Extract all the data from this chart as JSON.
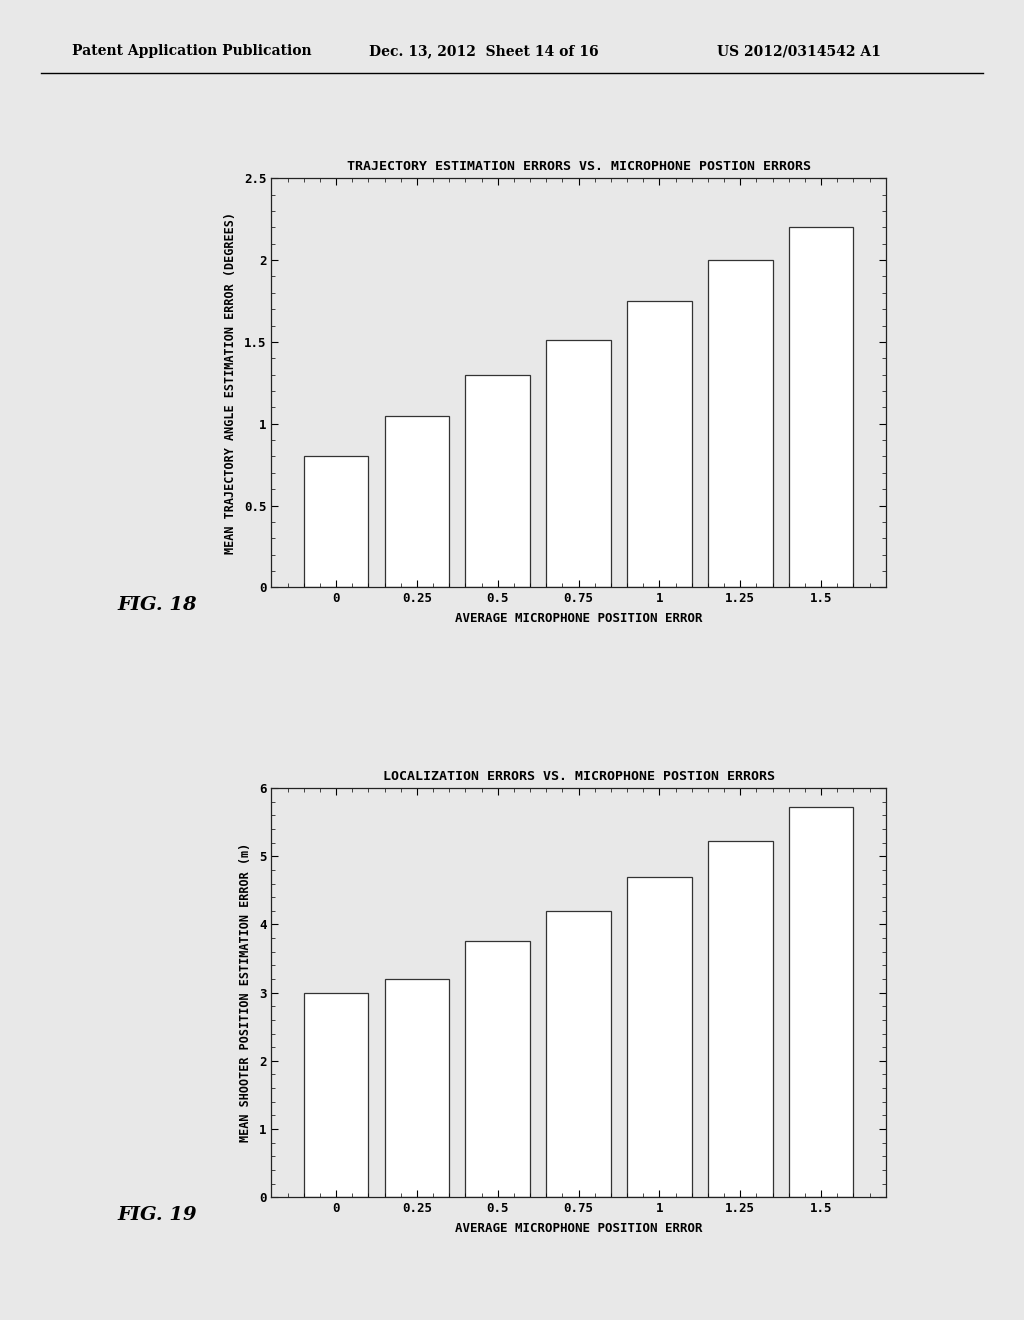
{
  "chart1": {
    "title": "TRAJECTORY ESTIMATION ERRORS VS. MICROPHONE POSTION ERRORS",
    "xlabel": "AVERAGE MICROPHONE POSITION ERROR",
    "ylabel": "MEAN TRAJECTORY ANGLE ESTIMATION ERROR (DEGREES)",
    "x_positions": [
      0,
      0.25,
      0.5,
      0.75,
      1.0,
      1.25,
      1.5
    ],
    "bar_heights": [
      0.8,
      1.05,
      1.3,
      1.51,
      1.75,
      2.0,
      2.2
    ],
    "bar_width": 0.2,
    "ylim": [
      0,
      2.5
    ],
    "yticks": [
      0,
      0.5,
      1.0,
      1.5,
      2.0,
      2.5
    ],
    "ytick_labels": [
      "0",
      "0.5",
      "1",
      "1.5",
      "2",
      "2.5"
    ],
    "xticks": [
      0,
      0.25,
      0.5,
      0.75,
      1.0,
      1.25,
      1.5
    ],
    "xtick_labels": [
      "0",
      "0.25",
      "0.5",
      "0.75",
      "1",
      "1.25",
      "1.5"
    ],
    "fig_label": "FIG. 18"
  },
  "chart2": {
    "title": "LOCALIZATION ERRORS VS. MICROPHONE POSTION ERRORS",
    "xlabel": "AVERAGE MICROPHONE POSITION ERROR",
    "ylabel": "MEAN SHOOTER POSITION ESTIMATION ERROR (m)",
    "x_positions": [
      0,
      0.25,
      0.5,
      0.75,
      1.0,
      1.25,
      1.5
    ],
    "bar_heights": [
      3.0,
      3.2,
      3.75,
      4.2,
      4.7,
      5.22,
      5.72
    ],
    "bar_width": 0.2,
    "ylim": [
      0,
      6
    ],
    "yticks": [
      0,
      1,
      2,
      3,
      4,
      5,
      6
    ],
    "ytick_labels": [
      "0",
      "1",
      "2",
      "3",
      "4",
      "5",
      "6"
    ],
    "xticks": [
      0,
      0.25,
      0.5,
      0.75,
      1.0,
      1.25,
      1.5
    ],
    "xtick_labels": [
      "0",
      "0.25",
      "0.5",
      "0.75",
      "1",
      "1.25",
      "1.5"
    ],
    "fig_label": "FIG. 19"
  },
  "background_color": "#e8e8e8",
  "plot_bg_color": "#e8e8e8",
  "bar_facecolor": "#ffffff",
  "bar_edgecolor": "#333333",
  "header_text": "Patent Application Publication",
  "header_date": "Dec. 13, 2012  Sheet 14 of 16",
  "header_patent": "US 2012/0314542 A1"
}
